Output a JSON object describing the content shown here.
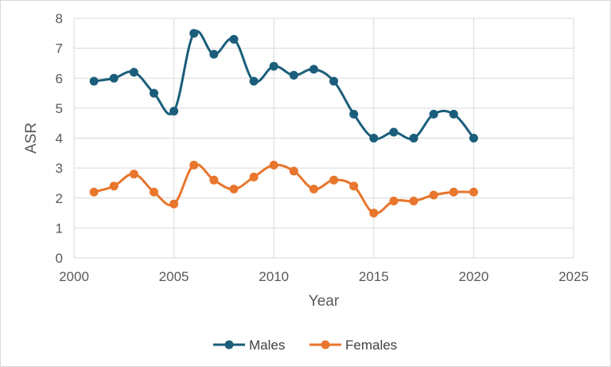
{
  "chart_data": {
    "type": "line",
    "title": "",
    "xlabel": "Year",
    "ylabel": "ASR",
    "xlim": [
      2000,
      2025
    ],
    "ylim": [
      0,
      8
    ],
    "xticks": [
      2000,
      2005,
      2010,
      2015,
      2020,
      2025
    ],
    "yticks": [
      0,
      1,
      2,
      3,
      4,
      5,
      6,
      7,
      8
    ],
    "grid": true,
    "legend_position": "bottom",
    "x": [
      2001,
      2002,
      2003,
      2004,
      2005,
      2006,
      2007,
      2008,
      2009,
      2010,
      2011,
      2012,
      2013,
      2014,
      2015,
      2016,
      2017,
      2018,
      2019,
      2020
    ],
    "series": [
      {
        "name": "Males",
        "color": "#1b5e7b",
        "values": [
          5.9,
          6.0,
          6.2,
          5.5,
          4.9,
          7.5,
          6.8,
          7.3,
          5.9,
          6.4,
          6.1,
          6.3,
          5.9,
          4.8,
          4.0,
          4.2,
          4.0,
          4.8,
          4.8,
          4.0
        ]
      },
      {
        "name": "Females",
        "color": "#e8762d",
        "values": [
          2.2,
          2.4,
          2.8,
          2.2,
          1.8,
          3.1,
          2.6,
          2.3,
          2.7,
          3.1,
          2.9,
          2.3,
          2.6,
          2.4,
          1.5,
          1.9,
          1.9,
          2.1,
          2.2,
          2.2
        ]
      }
    ]
  }
}
